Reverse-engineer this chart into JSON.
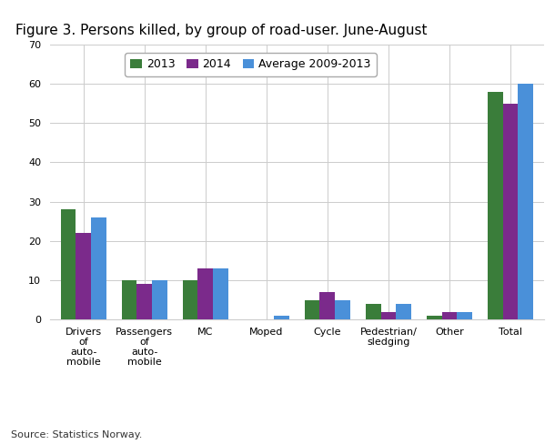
{
  "title": "Figure 3. Persons killed, by group of road-user. June-August",
  "categories": [
    "Drivers\nof\nauto-\nmobile",
    "Passengers\nof\nauto-\nmobile",
    "MC",
    "Moped",
    "Cycle",
    "Pedestrian/\nsledging",
    "Other",
    "Total"
  ],
  "series": {
    "2013": [
      28,
      10,
      10,
      0,
      5,
      4,
      1,
      58
    ],
    "2014": [
      22,
      9,
      13,
      0,
      7,
      2,
      2,
      55
    ],
    "Average 2009-2013": [
      26,
      10,
      13,
      1,
      5,
      4,
      2,
      60
    ]
  },
  "colors": {
    "2013": "#3a7d3a",
    "2014": "#7b2a8b",
    "Average 2009-2013": "#4a90d9"
  },
  "legend_labels": [
    "2013",
    "2014",
    "Average 2009-2013"
  ],
  "ylim": [
    0,
    70
  ],
  "yticks": [
    0,
    10,
    20,
    30,
    40,
    50,
    60,
    70
  ],
  "source_text": "Source: Statistics Norway.",
  "background_color": "#ffffff",
  "grid_color": "#cccccc",
  "title_fontsize": 11,
  "tick_fontsize": 8,
  "legend_fontsize": 9
}
